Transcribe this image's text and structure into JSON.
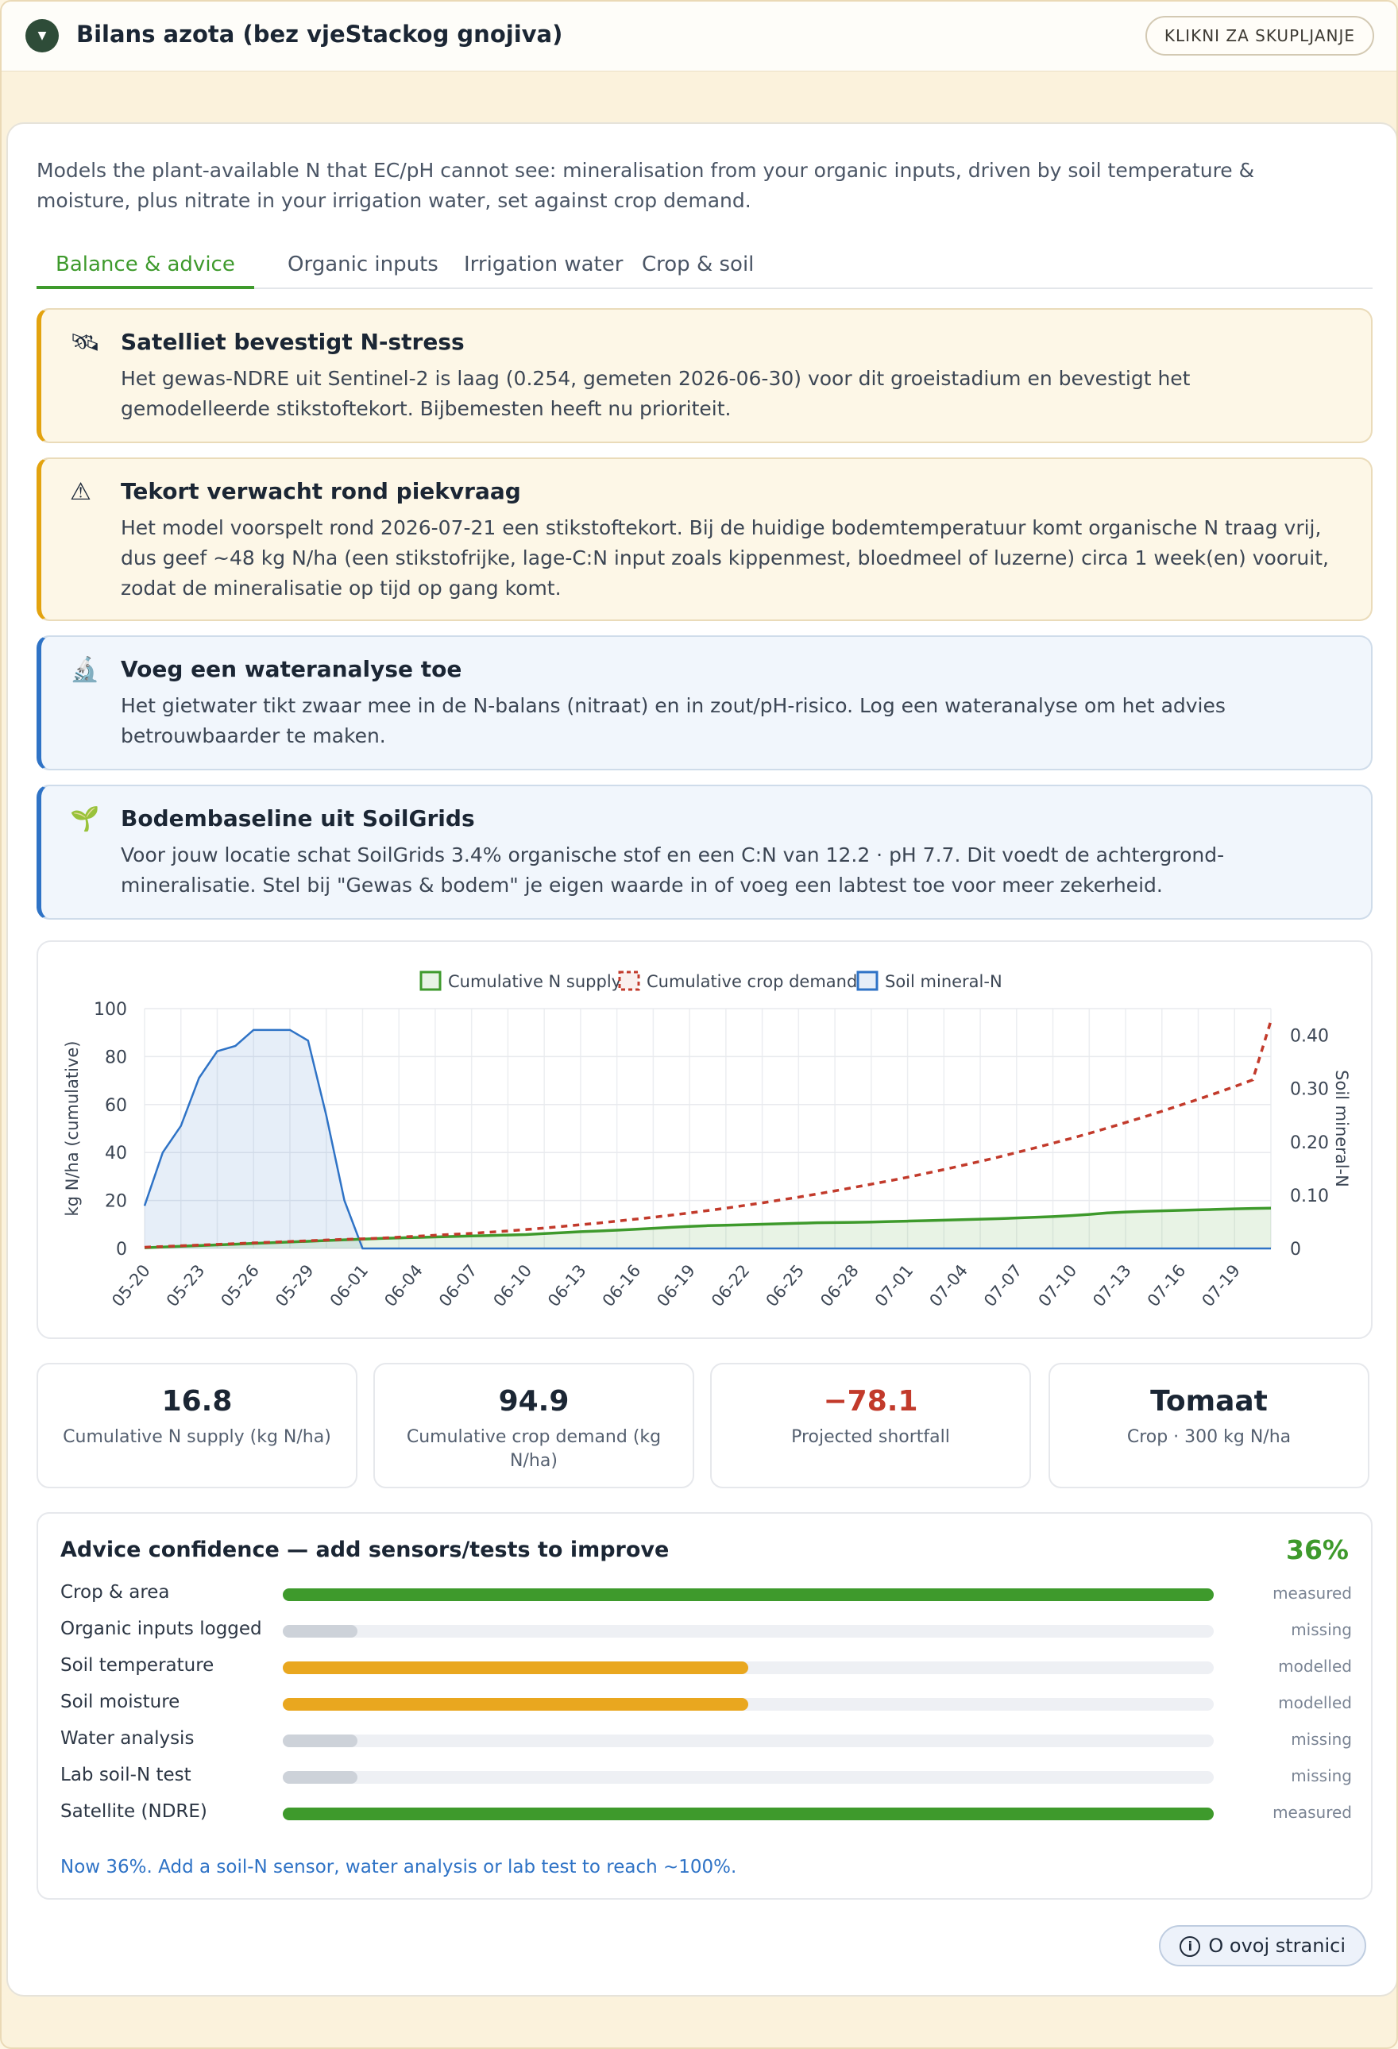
{
  "header": {
    "title": "Bilans azota (bez vjeStackog gnojiva)",
    "collapse_label": "KLIKNI ZA SKUPLJANJE",
    "toggle_glyph": "▼"
  },
  "intro": "Models the plant-available N that EC/pH cannot see: mineralisation from your organic inputs, driven by soil temperature & moisture, plus nitrate in your irrigation water, set against crop demand.",
  "tabs": [
    "Balance & advice",
    "Organic inputs",
    "Irrigation water",
    "Crop & soil"
  ],
  "alerts": [
    {
      "icon": "satellite-icon",
      "glyph": "🛰",
      "title": "Satelliet bevestigt N-stress",
      "body": "Het gewas-NDRE uit Sentinel-2 is laag (0.254, gemeten 2026-06-30) voor dit groeistadium en bevestigt het gemodelleerde stikstoftekort. Bijbemesten heeft nu prioriteit."
    },
    {
      "icon": "warning-icon",
      "glyph": "⚠",
      "title": "Tekort verwacht rond piekvraag",
      "body": "Het model voorspelt rond 2026-07-21 een stikstoftekort. Bij de huidige bodemtemperatuur komt organische N traag vrij, dus geef ~48 kg N/ha (een stikstofrijke, lage-C:N input zoals kippenmest, bloedmeel of luzerne) circa 1 week(en) vooruit, zodat de mineralisatie op tijd op gang komt."
    },
    {
      "icon": "microscope-icon",
      "glyph": "🔬",
      "title": "Voeg een wateranalyse toe",
      "body": "Het gietwater tikt zwaar mee in de N-balans (nitraat) en in zout/pH-risico. Log een wateranalyse om het advies betrouwbaarder te maken."
    },
    {
      "icon": "seedling-icon",
      "glyph": "🌱",
      "title": "Bodembaseline uit SoilGrids",
      "body": "Voor jouw locatie schat SoilGrids 3.4% organische stof en een C:N van 12.2 · pH 7.7. Dit voedt de achtergrond-mineralisatie. Stel bij \"Gewas & bodem\" je eigen waarde in of voeg een labtest toe voor meer zekerheid."
    }
  ],
  "chart_data": {
    "type": "line",
    "x": [
      "05-20",
      "05-21",
      "05-22",
      "05-23",
      "05-24",
      "05-25",
      "05-26",
      "05-27",
      "05-28",
      "05-29",
      "05-30",
      "05-31",
      "06-01",
      "06-02",
      "06-03",
      "06-04",
      "06-05",
      "06-06",
      "06-07",
      "06-08",
      "06-09",
      "06-10",
      "06-11",
      "06-12",
      "06-13",
      "06-14",
      "06-15",
      "06-16",
      "06-17",
      "06-18",
      "06-19",
      "06-20",
      "06-21",
      "06-22",
      "06-23",
      "06-24",
      "06-25",
      "06-26",
      "06-27",
      "06-28",
      "06-29",
      "06-30",
      "07-01",
      "07-02",
      "07-03",
      "07-04",
      "07-05",
      "07-06",
      "07-07",
      "07-08",
      "07-09",
      "07-10",
      "07-11",
      "07-12",
      "07-13",
      "07-14",
      "07-15",
      "07-16",
      "07-17",
      "07-18",
      "07-19",
      "07-20",
      "07-21"
    ],
    "tick_labels": [
      "05-20",
      "05-23",
      "05-26",
      "05-29",
      "06-01",
      "06-04",
      "06-07",
      "06-10",
      "06-13",
      "06-16",
      "06-19",
      "06-22",
      "06-25",
      "06-28",
      "07-01",
      "07-04",
      "07-07",
      "07-10",
      "07-13",
      "07-16",
      "07-19"
    ],
    "series": [
      {
        "name": "Cumulative N supply",
        "axis": "left",
        "color": "#3e9a2c",
        "values": [
          0.3,
          0.6,
          0.9,
          1.2,
          1.5,
          1.8,
          2.1,
          2.4,
          2.7,
          3.0,
          3.3,
          3.6,
          3.9,
          4.2,
          4.4,
          4.6,
          4.8,
          5.0,
          5.2,
          5.4,
          5.6,
          5.8,
          6.2,
          6.6,
          7.0,
          7.3,
          7.6,
          8.0,
          8.4,
          8.8,
          9.2,
          9.5,
          9.7,
          9.9,
          10.1,
          10.3,
          10.5,
          10.7,
          10.8,
          10.9,
          11.0,
          11.2,
          11.4,
          11.6,
          11.8,
          12.0,
          12.2,
          12.4,
          12.7,
          13.0,
          13.3,
          13.7,
          14.2,
          14.8,
          15.2,
          15.5,
          15.7,
          15.9,
          16.1,
          16.3,
          16.5,
          16.7,
          16.8
        ]
      },
      {
        "name": "Cumulative crop demand",
        "axis": "left",
        "color": "#c23a2b",
        "dashed": true,
        "values": [
          0.5,
          0.8,
          1.1,
          1.4,
          1.7,
          2.0,
          2.3,
          2.6,
          2.9,
          3.2,
          3.5,
          3.8,
          4.0,
          4.3,
          4.7,
          5.1,
          5.5,
          5.9,
          6.3,
          6.8,
          7.3,
          7.9,
          8.5,
          9.2,
          9.9,
          10.6,
          11.4,
          12.2,
          13.0,
          13.9,
          14.8,
          15.8,
          16.8,
          17.9,
          19.0,
          20.2,
          21.4,
          22.7,
          24.0,
          25.4,
          26.8,
          28.2,
          29.7,
          31.3,
          32.9,
          34.6,
          36.3,
          38.1,
          40.0,
          41.9,
          43.9,
          45.9,
          48.0,
          50.2,
          52.5,
          54.8,
          57.2,
          59.7,
          62.2,
          64.8,
          67.5,
          70.3,
          94.9
        ]
      },
      {
        "name": "Soil mineral-N",
        "axis": "right",
        "color": "#2f73c6",
        "values": [
          0.08,
          0.18,
          0.23,
          0.32,
          0.37,
          0.38,
          0.41,
          0.41,
          0.41,
          0.39,
          0.25,
          0.09,
          0,
          0,
          0,
          0,
          0,
          0,
          0,
          0,
          0,
          0,
          0,
          0,
          0,
          0,
          0,
          0,
          0,
          0,
          0,
          0,
          0,
          0,
          0,
          0,
          0,
          0,
          0,
          0,
          0,
          0,
          0,
          0,
          0,
          0,
          0,
          0,
          0,
          0,
          0,
          0,
          0,
          0,
          0,
          0,
          0,
          0,
          0,
          0,
          0,
          0,
          0
        ]
      }
    ],
    "ylabel": "kg N/ha (cumulative)",
    "y2label": "Soil mineral-N",
    "ylim": [
      0,
      100
    ],
    "y2lim": [
      0,
      0.45
    ],
    "yticks": [
      0,
      20,
      40,
      60,
      80,
      100
    ],
    "y2ticks": [
      "0",
      "0.10",
      "0.20",
      "0.30",
      "0.40"
    ],
    "legend_position": "top-center",
    "grid": true
  },
  "stats": [
    {
      "value": "16.8",
      "label": "Cumulative N supply (kg N/ha)"
    },
    {
      "value": "94.9",
      "label": "Cumulative crop demand (kg N/ha)"
    },
    {
      "value": "−78.1",
      "label": "Projected shortfall",
      "negative": true
    },
    {
      "value": "Tomaat",
      "label": "Crop · 300 kg N/ha"
    }
  ],
  "confidence": {
    "title": "Advice confidence — add sensors/tests to improve",
    "percent": "36%",
    "rows": [
      {
        "label": "Crop & area",
        "level": 1.0,
        "status": "measured",
        "color": "#3e9a2c"
      },
      {
        "label": "Organic inputs logged",
        "level": 0.08,
        "status": "missing",
        "color": "#cdd2d9"
      },
      {
        "label": "Soil temperature",
        "level": 0.5,
        "status": "modelled",
        "color": "#e9a71f"
      },
      {
        "label": "Soil moisture",
        "level": 0.5,
        "status": "modelled",
        "color": "#e9a71f"
      },
      {
        "label": "Water analysis",
        "level": 0.08,
        "status": "missing",
        "color": "#cdd2d9"
      },
      {
        "label": "Lab soil-N test",
        "level": 0.08,
        "status": "missing",
        "color": "#cdd2d9"
      },
      {
        "label": "Satellite (NDRE)",
        "level": 1.0,
        "status": "measured",
        "color": "#3e9a2c"
      }
    ],
    "hint": "Now 36%. Add a soil-N sensor, water analysis or lab test to reach ~100%."
  },
  "about": {
    "label": "O ovoj stranici",
    "glyph": "i"
  }
}
